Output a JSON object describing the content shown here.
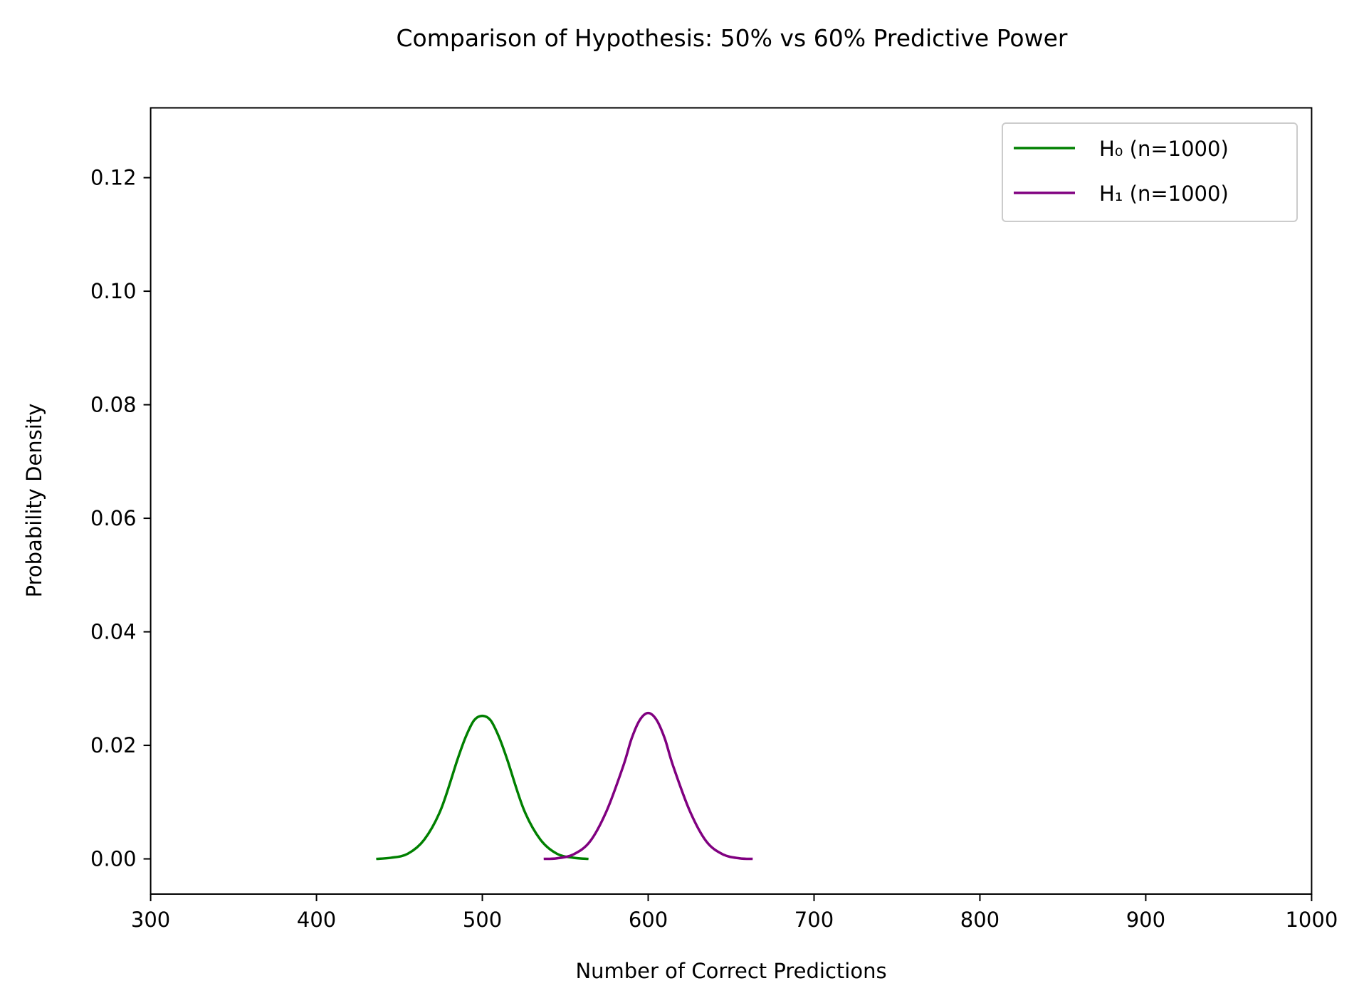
{
  "chart_data": {
    "type": "line",
    "title": "Comparison of Hypothesis: 50% vs 60% Predictive Power",
    "xlabel": "Number of Correct Predictions",
    "ylabel": "Probability Density",
    "xlim": [
      300,
      1000
    ],
    "ylim": [
      -0.0062,
      0.1323
    ],
    "xticks": [
      300,
      400,
      500,
      600,
      700,
      800,
      900,
      1000
    ],
    "xtick_labels": [
      "300",
      "400",
      "500",
      "600",
      "700",
      "800",
      "900",
      "1000"
    ],
    "yticks": [
      0.0,
      0.02,
      0.04,
      0.06,
      0.08,
      0.1,
      0.12
    ],
    "ytick_labels": [
      "0.00",
      "0.02",
      "0.04",
      "0.06",
      "0.08",
      "0.10",
      "0.12"
    ],
    "grid": false,
    "legend_position": "top-right",
    "series": [
      {
        "name": "H₀ (n=1000)",
        "color": "#008000",
        "x": [
          436,
          445,
          455,
          465,
          475,
          485,
          490,
          495,
          500,
          505,
          510,
          515,
          525,
          535,
          545,
          555,
          564
        ],
        "y": [
          0.0,
          0.0002,
          0.0009,
          0.0034,
          0.0087,
          0.0175,
          0.0215,
          0.0244,
          0.0252,
          0.0244,
          0.0215,
          0.0175,
          0.0087,
          0.0034,
          0.0009,
          0.0002,
          0.0
        ]
      },
      {
        "name": "H₁ (n=1000)",
        "color": "#800080",
        "x": [
          537,
          545,
          555,
          565,
          575,
          585,
          590,
          595,
          600,
          605,
          610,
          615,
          625,
          635,
          645,
          655,
          663
        ],
        "y": [
          0.0,
          0.0001,
          0.0008,
          0.0031,
          0.0085,
          0.0164,
          0.0212,
          0.0245,
          0.0257,
          0.0245,
          0.0212,
          0.0164,
          0.0085,
          0.0031,
          0.0008,
          0.0001,
          0.0
        ]
      }
    ]
  }
}
